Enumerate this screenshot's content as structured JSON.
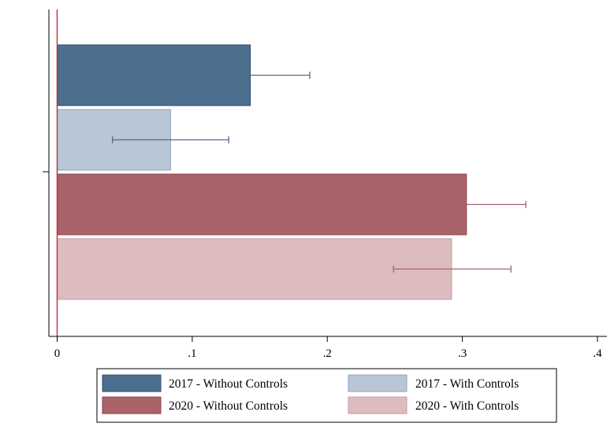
{
  "chart_data": {
    "type": "bar",
    "orientation": "horizontal",
    "title": "",
    "xlabel": "",
    "ylabel": "",
    "xlim": [
      0,
      0.4
    ],
    "x_ticks": [
      {
        "value": 0,
        "label": "0"
      },
      {
        "value": 0.1,
        "label": ".1"
      },
      {
        "value": 0.2,
        "label": ".2"
      },
      {
        "value": 0.3,
        "label": ".3"
      },
      {
        "value": 0.4,
        "label": ".4"
      }
    ],
    "grid": false,
    "reference_line": {
      "x": 0,
      "color": "#b5313f"
    },
    "error_bars": true,
    "legend_position": "bottom",
    "series": [
      {
        "name": "2017 - Without Controls",
        "value": 0.143,
        "ci": [
          0.099,
          0.187
        ],
        "color": "#4c6e8f",
        "edge": "#2f4c6b",
        "error_color": "#4c6e8f"
      },
      {
        "name": "2017 - With Controls",
        "value": 0.084,
        "ci": [
          0.041,
          0.127
        ],
        "color": "#b9c6d5",
        "edge": "#8fa3ba",
        "error_color": "#4c6e8f"
      },
      {
        "name": "2020 - Without Controls",
        "value": 0.303,
        "ci": [
          0.26,
          0.347
        ],
        "color": "#a96369",
        "edge": "#8b3f48",
        "error_color": "#a96369"
      },
      {
        "name": "2020 - With Controls",
        "value": 0.292,
        "ci": [
          0.249,
          0.336
        ],
        "color": "#ddbcc0",
        "edge": "#c99aa0",
        "error_color": "#a96369"
      }
    ]
  }
}
